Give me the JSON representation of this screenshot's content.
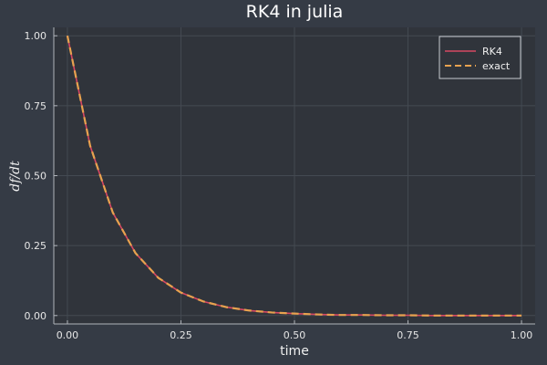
{
  "chart_data": {
    "type": "line",
    "title": "RK4 in julia",
    "xlabel": "time",
    "ylabel": "df/dt",
    "xlim": [
      -0.03,
      1.03
    ],
    "ylim": [
      -0.03,
      1.03
    ],
    "xticks": [
      "0.00",
      "0.25",
      "0.50",
      "0.75",
      "1.00"
    ],
    "yticks": [
      "0.00",
      "0.25",
      "0.50",
      "0.75",
      "1.00"
    ],
    "grid": true,
    "legend_position": "top-right",
    "x": [
      0.0,
      0.05,
      0.1,
      0.15,
      0.2,
      0.25,
      0.3,
      0.35,
      0.4,
      0.45,
      0.5,
      0.55,
      0.6,
      0.65,
      0.7,
      0.75,
      0.8,
      0.85,
      0.9,
      0.95,
      1.0
    ],
    "series": [
      {
        "name": "RK4",
        "color": "#d64863",
        "style": "solid",
        "values": [
          1.0,
          0.607,
          0.368,
          0.223,
          0.135,
          0.082,
          0.05,
          0.03,
          0.018,
          0.011,
          0.007,
          0.004,
          0.002,
          0.002,
          0.001,
          0.001,
          0.0,
          0.0,
          0.0,
          0.0,
          0.0
        ]
      },
      {
        "name": "exact",
        "color": "#e8a24f",
        "style": "dashed",
        "values": [
          1.0,
          0.607,
          0.368,
          0.223,
          0.135,
          0.082,
          0.05,
          0.03,
          0.018,
          0.011,
          0.007,
          0.004,
          0.002,
          0.002,
          0.001,
          0.001,
          0.0,
          0.0,
          0.0,
          0.0,
          0.0
        ]
      }
    ]
  },
  "colors": {
    "background": "#353b45",
    "plot_area": "#30343b",
    "grid": "#444a52",
    "axis": "#b0b4ba",
    "text": "#f0f0f0"
  }
}
